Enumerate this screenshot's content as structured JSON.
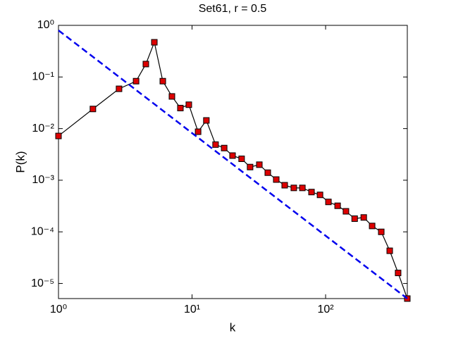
{
  "chart_data": {
    "type": "line",
    "title": "Set61, r = 0.5",
    "x_label": "k",
    "y_label": "P(k)",
    "x_log": true,
    "y_log": true,
    "xlim": [
      1,
      409
    ],
    "ylim": [
      5.1e-06,
      1
    ],
    "xticks": [
      {
        "value": 1,
        "label": "10⁰"
      },
      {
        "value": 10,
        "label": "10¹"
      },
      {
        "value": 100,
        "label": "10²"
      }
    ],
    "yticks": [
      {
        "value": 1e-05,
        "label": "10⁻⁵"
      },
      {
        "value": 0.0001,
        "label": "10⁻⁴"
      },
      {
        "value": 0.001,
        "label": "10⁻³"
      },
      {
        "value": 0.01,
        "label": "10⁻²"
      },
      {
        "value": 0.1,
        "label": "10⁻¹"
      },
      {
        "value": 1,
        "label": "10⁰"
      }
    ],
    "series": [
      {
        "color": "#000000",
        "marker_color": "#dd0000",
        "style": "solid-markers",
        "x": [
          1,
          1.81,
          2.84,
          3.81,
          4.51,
          5.22,
          6.04,
          7.07,
          8.18,
          9.46,
          11.1,
          12.8,
          15.0,
          17.4,
          20.1,
          23.5,
          27.2,
          31.9,
          36.9,
          42.7,
          49.4,
          57.8,
          67.0,
          78.4,
          90.8,
          105,
          123,
          142,
          165,
          193,
          223,
          261,
          302,
          349,
          409
        ],
        "values": [
          0.0072,
          0.024,
          0.059,
          0.083,
          0.178,
          0.47,
          0.083,
          0.042,
          0.025,
          0.029,
          0.0087,
          0.0144,
          0.0049,
          0.0042,
          0.003,
          0.0026,
          0.0018,
          0.002,
          0.0014,
          0.00103,
          0.0008,
          0.00071,
          0.00071,
          0.00059,
          0.00052,
          0.00038,
          0.00032,
          0.00025,
          0.00018,
          0.00019,
          0.00013,
          0.0001,
          4.3e-05,
          1.6e-05,
          5.1e-06
        ]
      },
      {
        "color": "#0000ee",
        "style": "dashed",
        "x": [
          1,
          409
        ],
        "values": [
          0.8,
          5.1e-06
        ]
      }
    ]
  }
}
